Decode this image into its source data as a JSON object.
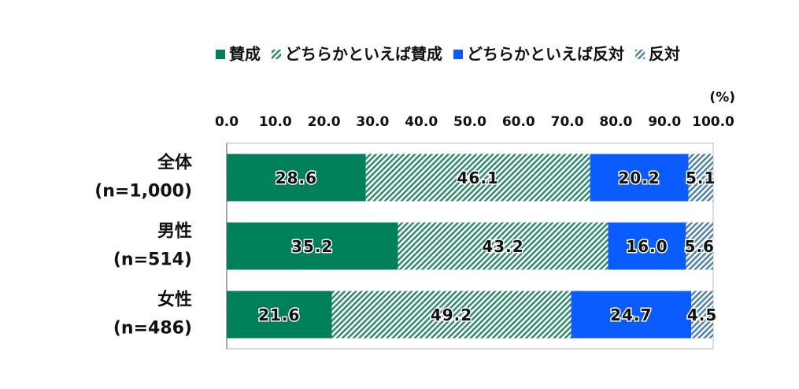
{
  "chart_data": {
    "type": "stacked-barh",
    "unit_label": "(%)",
    "categories": [
      [
        "全体",
        "(n=1,000)"
      ],
      [
        "男性",
        "(n=514)"
      ],
      [
        "女性",
        "(n=486)"
      ]
    ],
    "series": [
      {
        "name": "賛成",
        "color": "#00805a",
        "pattern": "solid",
        "values": [
          28.6,
          35.2,
          21.6
        ],
        "value_labels": [
          "28.6",
          "35.2",
          "21.6"
        ]
      },
      {
        "name": "どちらかといえば賛成",
        "color": "#2e8b6e",
        "pattern": "hatch",
        "values": [
          46.1,
          43.2,
          49.2
        ],
        "value_labels": [
          "46.1",
          "43.2",
          "49.2"
        ]
      },
      {
        "name": "どちらかといえば反対",
        "color": "#0a5cff",
        "pattern": "solid",
        "values": [
          20.2,
          16.0,
          24.7
        ],
        "value_labels": [
          "20.2",
          "16.0",
          "24.7"
        ]
      },
      {
        "name": "反対",
        "color": "#4f82b0",
        "pattern": "hatch",
        "values": [
          5.1,
          5.6,
          4.5
        ],
        "value_labels": [
          "5.1",
          "5.6",
          "4.5"
        ]
      }
    ],
    "xlim": [
      0,
      100
    ],
    "xticks": [
      {
        "value": 0,
        "label": "0.0"
      },
      {
        "value": 10,
        "label": "10.0"
      },
      {
        "value": 20,
        "label": "20.0"
      },
      {
        "value": 30,
        "label": "30.0"
      },
      {
        "value": 40,
        "label": "40.0"
      },
      {
        "value": 50,
        "label": "50.0"
      },
      {
        "value": 60,
        "label": "60.0"
      },
      {
        "value": 70,
        "label": "70.0"
      },
      {
        "value": 80,
        "label": "80.0"
      },
      {
        "value": 90,
        "label": "90.0"
      },
      {
        "value": 100,
        "label": "100.0"
      }
    ],
    "legend": "top"
  }
}
